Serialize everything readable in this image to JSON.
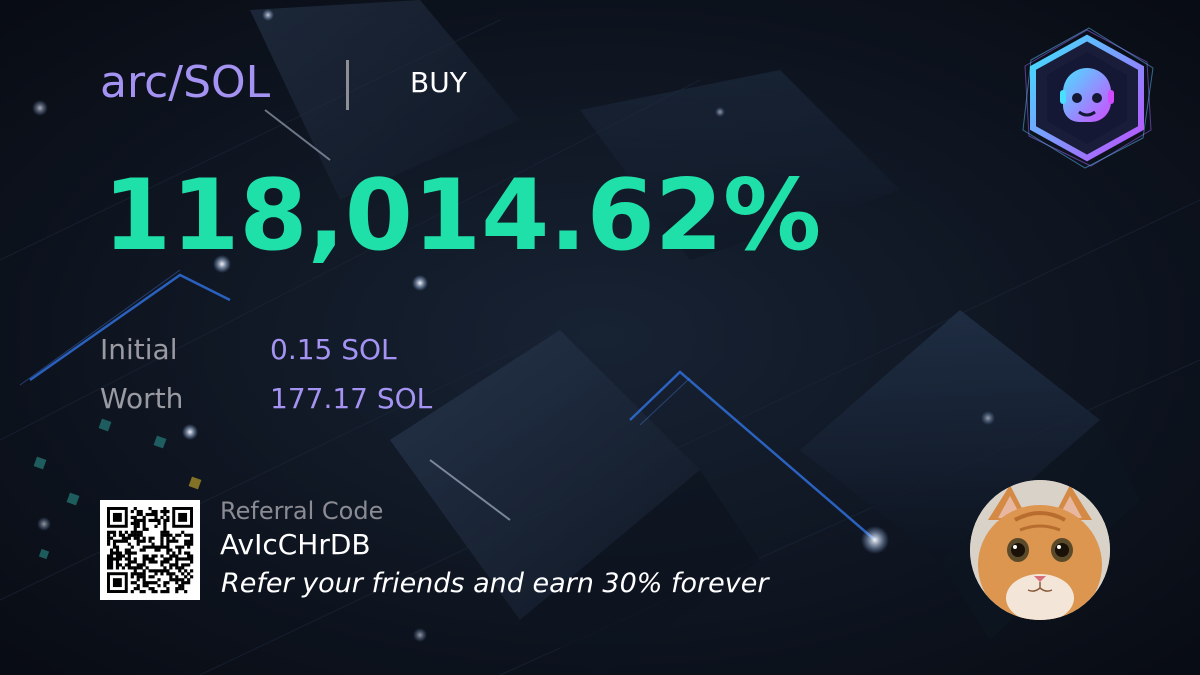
{
  "trade": {
    "pair": "arc/SOL",
    "side": "BUY",
    "pnl_percent": "118,014.62%"
  },
  "stats": [
    {
      "label": "Initial",
      "value": "0.15 SOL"
    },
    {
      "label": "Worth",
      "value": "177.17 SOL"
    }
  ],
  "referral": {
    "label": "Referral Code",
    "code": "AvIcCHrDB",
    "note": "Refer your friends and earn 30% forever"
  },
  "icons": {
    "brand_logo": "robot-face-hexagon-icon",
    "avatar": "cat-avatar",
    "qr": "qr-code"
  },
  "colors": {
    "accent_purple": "#a493f2",
    "gain_green": "#1fe0a8",
    "background": "#0b1019"
  }
}
